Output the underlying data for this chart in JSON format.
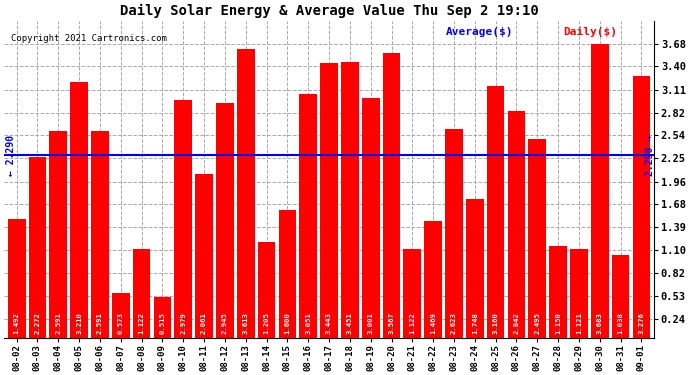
{
  "title": "Daily Solar Energy & Average Value Thu Sep 2 19:10",
  "copyright": "Copyright 2021 Cartronics.com",
  "legend_avg": "Average($)",
  "legend_daily": "Daily($)",
  "average_value": 2.29,
  "average_label": "2.290",
  "categories": [
    "08-02",
    "08-03",
    "08-04",
    "08-05",
    "08-06",
    "08-07",
    "08-08",
    "08-09",
    "08-10",
    "08-11",
    "08-12",
    "08-13",
    "08-14",
    "08-15",
    "08-16",
    "08-17",
    "08-18",
    "08-19",
    "08-20",
    "08-21",
    "08-22",
    "08-23",
    "08-24",
    "08-25",
    "08-26",
    "08-27",
    "08-28",
    "08-29",
    "08-30",
    "08-31",
    "09-01"
  ],
  "values": [
    1.492,
    2.272,
    2.591,
    3.21,
    2.591,
    0.573,
    1.122,
    0.515,
    2.979,
    2.061,
    2.945,
    3.613,
    1.205,
    1.6,
    3.051,
    3.443,
    3.451,
    3.001,
    3.567,
    1.122,
    1.469,
    2.623,
    1.748,
    3.16,
    2.842,
    2.495,
    1.15,
    1.121,
    3.683,
    1.038,
    3.276
  ],
  "bar_color": "#ff0000",
  "avg_line_color": "#0000ff",
  "background_color": "#ffffff",
  "plot_bg_color": "#ffffff",
  "grid_color": "#aaaaaa",
  "title_color": "#000000",
  "bar_label_color": "#ffffff",
  "ylim_min": 0.0,
  "ylim_max": 3.97,
  "yticks": [
    0.24,
    0.53,
    0.82,
    1.1,
    1.39,
    1.68,
    1.96,
    2.25,
    2.54,
    2.82,
    3.11,
    3.4,
    3.68
  ]
}
